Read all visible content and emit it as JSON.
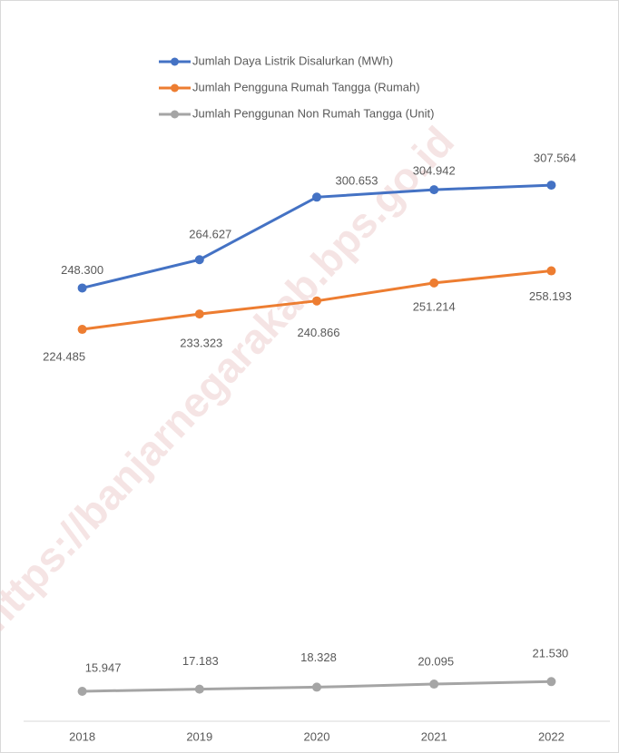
{
  "chart_data": {
    "type": "line",
    "watermark": "https://banjarnegarakab.bps.go.id",
    "categories": [
      "2018",
      "2019",
      "2020",
      "2021",
      "2022"
    ],
    "ylim": [
      0,
      350000
    ],
    "series": [
      {
        "name": "Jumlah Daya Listrik Disalurkan (MWh)",
        "color": "#4472c4",
        "values": [
          248300,
          264627,
          300653,
          304942,
          307564
        ],
        "value_labels": [
          "248.300",
          "264.627",
          "300.653",
          "304.942",
          "307.564"
        ]
      },
      {
        "name": "Jumlah Pengguna Rumah Tangga (Rumah)",
        "color": "#ed7d31",
        "values": [
          224485,
          233323,
          240866,
          251214,
          258193
        ],
        "value_labels": [
          "224.485",
          "233.323",
          "240.866",
          "251.214",
          "258.193"
        ]
      },
      {
        "name": "Jumlah Penggunan Non Rumah Tangga (Unit)",
        "color": "#a5a5a5",
        "values": [
          15947,
          17183,
          18328,
          20095,
          21530
        ],
        "value_labels": [
          "15.947",
          "17.183",
          "18.328",
          "20.095",
          "21.530"
        ]
      }
    ]
  }
}
